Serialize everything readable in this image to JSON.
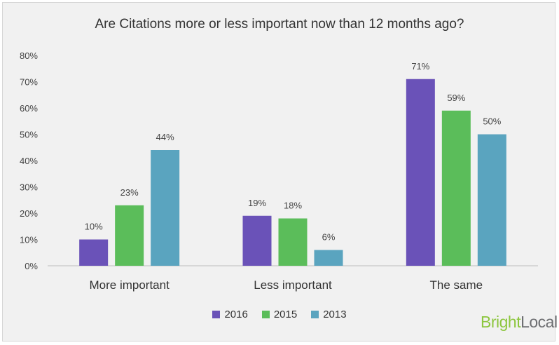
{
  "chart_data": {
    "type": "bar",
    "title": "Are Citations more or less important now than 12 months ago?",
    "categories": [
      "More important",
      "Less important",
      "The same"
    ],
    "series": [
      {
        "name": "2016",
        "color": "#6a52b8",
        "values": [
          10,
          19,
          71
        ],
        "labels": [
          "10%",
          "19%",
          "71%"
        ]
      },
      {
        "name": "2015",
        "color": "#5bbd5a",
        "values": [
          23,
          18,
          59
        ],
        "labels": [
          "23%",
          "18%",
          "59%"
        ]
      },
      {
        "name": "2013",
        "color": "#5aa4bf",
        "values": [
          44,
          6,
          50
        ],
        "labels": [
          "44%",
          "6%",
          "50%"
        ]
      }
    ],
    "ylim": [
      0,
      80
    ],
    "yticks": [
      0,
      10,
      20,
      30,
      40,
      50,
      60,
      70,
      80
    ],
    "ytick_labels": [
      "0%",
      "10%",
      "20%",
      "30%",
      "40%",
      "50%",
      "60%",
      "70%",
      "80%"
    ],
    "grid": false,
    "legend_position": "bottom"
  },
  "brand": {
    "part1": "Bright",
    "part2": "Local",
    "color1": "#8dc63f",
    "color2": "#6d6e71"
  }
}
